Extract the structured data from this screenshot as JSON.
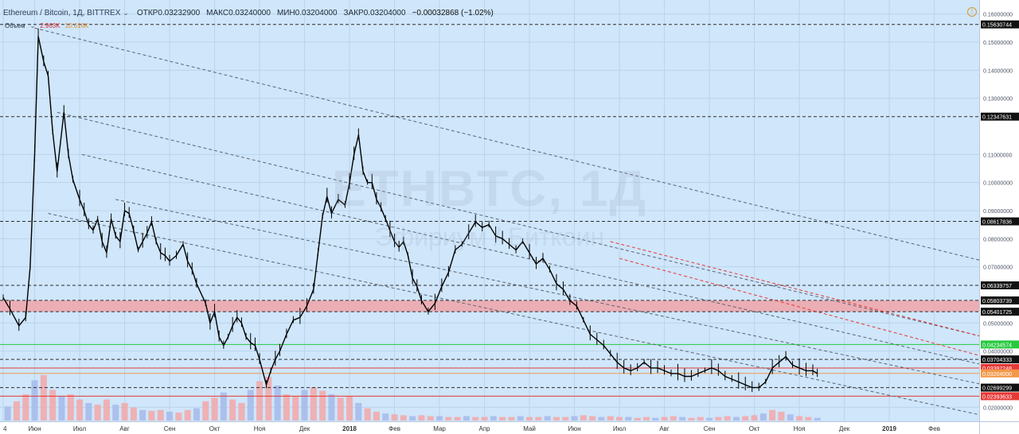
{
  "header": {
    "symbol": "Ethereum / Bitcoin, 1Д, BITTREX",
    "open": "ОТКР0.03232900",
    "high": "МАКС0.03240000",
    "low": "МИН0.03204000",
    "close": "ЗАКР0.03204000",
    "change": "−0.00032868 (−1.02%)"
  },
  "volume_legend": {
    "label": "Объем",
    "value1": "2.963K",
    "value2": "10.616K"
  },
  "watermark": {
    "title": "ETHBTC, 1Д",
    "subtitle": "Эфириум / Биткоин"
  },
  "colors": {
    "background": "#cfe6fb",
    "candle": "#000000",
    "volume_up": "#a6b8e9",
    "volume_down": "#f3a7a7",
    "zone_fill": "#f0a3a8",
    "red_line": "#e53935",
    "green_line": "#27c93f",
    "grey_dashed": "#5b6570"
  },
  "chart_data": {
    "type": "candlestick",
    "symbol": "ETHBTC",
    "exchange": "BITTREX",
    "timeframe": "1Д",
    "yaxis": {
      "tick_labels": [
        "0.16000000",
        "0.15000000",
        "0.14000000",
        "0.13000000",
        "0.11000000",
        "0.10000000",
        "0.09000000",
        "0.08000000",
        "0.07000000",
        "0.05000000",
        "0.04000000",
        "0.02000000"
      ],
      "ticks": [
        0.16,
        0.15,
        0.14,
        0.13,
        0.11,
        0.1,
        0.09,
        0.08,
        0.07,
        0.05,
        0.04,
        0.02
      ],
      "range": [
        0.015,
        0.165
      ]
    },
    "xaxis": {
      "tick_labels": [
        "4",
        "Июн",
        "Июл",
        "Авг",
        "Сен",
        "Окт",
        "Ноя",
        "Дек",
        "2018",
        "Фев",
        "Мар",
        "Апр",
        "Май",
        "Июн",
        "Июл",
        "Авг",
        "Сен",
        "Окт",
        "Ноя",
        "Дек",
        "2019",
        "Фев"
      ],
      "tick_positions": [
        0.0,
        0.7,
        1.7,
        2.7,
        3.7,
        4.7,
        5.7,
        6.7,
        7.7,
        8.7,
        9.7,
        10.7,
        11.7,
        12.7,
        13.7,
        14.7,
        15.7,
        16.7,
        17.7,
        18.7,
        19.7,
        20.7
      ]
    },
    "price_markers": [
      {
        "label": "0.15630744",
        "value": 0.15630744,
        "style": "black"
      },
      {
        "label": "0.12347631",
        "value": 0.12347631,
        "style": "black"
      },
      {
        "label": "0.08617836",
        "value": 0.08617836,
        "style": "black"
      },
      {
        "label": "0.06339757",
        "value": 0.06339757,
        "style": "black"
      },
      {
        "label": "0.05803739",
        "value": 0.05803739,
        "style": "black"
      },
      {
        "label": "0.05401725",
        "value": 0.05401725,
        "style": "black"
      },
      {
        "label": "0.04234574",
        "value": 0.04234574,
        "style": "green"
      },
      {
        "label": "0.03704333",
        "value": 0.03704333,
        "style": "black"
      },
      {
        "label": "0.03397248",
        "value": 0.03397248,
        "style": "red"
      },
      {
        "label": "0.03204000",
        "value": 0.03204,
        "style": "orange"
      },
      {
        "label": "0.02699299",
        "value": 0.02699299,
        "style": "black"
      },
      {
        "label": "0.02393633",
        "value": 0.02393633,
        "style": "red"
      }
    ],
    "resistance_zone": [
      0.05401725,
      0.05803739
    ],
    "price_path": [
      [
        0.0,
        0.059
      ],
      [
        0.15,
        0.055
      ],
      [
        0.35,
        0.049
      ],
      [
        0.5,
        0.052
      ],
      [
        0.6,
        0.07
      ],
      [
        0.7,
        0.11
      ],
      [
        0.78,
        0.152
      ],
      [
        0.9,
        0.143
      ],
      [
        1.0,
        0.138
      ],
      [
        1.1,
        0.118
      ],
      [
        1.2,
        0.104
      ],
      [
        1.35,
        0.125
      ],
      [
        1.45,
        0.11
      ],
      [
        1.55,
        0.101
      ],
      [
        1.7,
        0.094
      ],
      [
        1.8,
        0.09
      ],
      [
        1.9,
        0.085
      ],
      [
        2.0,
        0.083
      ],
      [
        2.1,
        0.087
      ],
      [
        2.2,
        0.079
      ],
      [
        2.3,
        0.075
      ],
      [
        2.4,
        0.087
      ],
      [
        2.5,
        0.081
      ],
      [
        2.6,
        0.079
      ],
      [
        2.7,
        0.09
      ],
      [
        2.8,
        0.089
      ],
      [
        2.9,
        0.083
      ],
      [
        3.0,
        0.076
      ],
      [
        3.1,
        0.079
      ],
      [
        3.2,
        0.082
      ],
      [
        3.3,
        0.086
      ],
      [
        3.4,
        0.079
      ],
      [
        3.5,
        0.075
      ],
      [
        3.6,
        0.074
      ],
      [
        3.7,
        0.072
      ],
      [
        3.85,
        0.074
      ],
      [
        4.0,
        0.078
      ],
      [
        4.1,
        0.072
      ],
      [
        4.2,
        0.069
      ],
      [
        4.3,
        0.064
      ],
      [
        4.5,
        0.057
      ],
      [
        4.6,
        0.05
      ],
      [
        4.7,
        0.054
      ],
      [
        4.8,
        0.045
      ],
      [
        4.9,
        0.042
      ],
      [
        5.0,
        0.045
      ],
      [
        5.1,
        0.049
      ],
      [
        5.2,
        0.052
      ],
      [
        5.3,
        0.05
      ],
      [
        5.4,
        0.045
      ],
      [
        5.5,
        0.043
      ],
      [
        5.6,
        0.042
      ],
      [
        5.7,
        0.037
      ],
      [
        5.85,
        0.028
      ],
      [
        5.95,
        0.033
      ],
      [
        6.05,
        0.037
      ],
      [
        6.15,
        0.04
      ],
      [
        6.3,
        0.046
      ],
      [
        6.45,
        0.051
      ],
      [
        6.6,
        0.052
      ],
      [
        6.75,
        0.056
      ],
      [
        6.9,
        0.062
      ],
      [
        7.0,
        0.075
      ],
      [
        7.1,
        0.088
      ],
      [
        7.2,
        0.095
      ],
      [
        7.3,
        0.089
      ],
      [
        7.45,
        0.094
      ],
      [
        7.6,
        0.092
      ],
      [
        7.7,
        0.1
      ],
      [
        7.8,
        0.11
      ],
      [
        7.9,
        0.117
      ],
      [
        8.0,
        0.104
      ],
      [
        8.1,
        0.1
      ],
      [
        8.2,
        0.1
      ],
      [
        8.3,
        0.094
      ],
      [
        8.4,
        0.091
      ],
      [
        8.5,
        0.087
      ],
      [
        8.6,
        0.083
      ],
      [
        8.7,
        0.079
      ],
      [
        8.8,
        0.077
      ],
      [
        8.9,
        0.079
      ],
      [
        9.0,
        0.074
      ],
      [
        9.1,
        0.066
      ],
      [
        9.2,
        0.063
      ],
      [
        9.3,
        0.058
      ],
      [
        9.45,
        0.054
      ],
      [
        9.6,
        0.057
      ],
      [
        9.75,
        0.063
      ],
      [
        9.9,
        0.068
      ],
      [
        10.05,
        0.076
      ],
      [
        10.2,
        0.078
      ],
      [
        10.35,
        0.082
      ],
      [
        10.5,
        0.086
      ],
      [
        10.65,
        0.084
      ],
      [
        10.8,
        0.085
      ],
      [
        10.95,
        0.081
      ],
      [
        11.1,
        0.08
      ],
      [
        11.25,
        0.078
      ],
      [
        11.4,
        0.076
      ],
      [
        11.55,
        0.079
      ],
      [
        11.7,
        0.075
      ],
      [
        11.85,
        0.071
      ],
      [
        12.0,
        0.073
      ],
      [
        12.15,
        0.069
      ],
      [
        12.3,
        0.064
      ],
      [
        12.45,
        0.062
      ],
      [
        12.6,
        0.058
      ],
      [
        12.75,
        0.056
      ],
      [
        12.9,
        0.051
      ],
      [
        13.05,
        0.046
      ],
      [
        13.2,
        0.044
      ],
      [
        13.35,
        0.042
      ],
      [
        13.5,
        0.039
      ],
      [
        13.65,
        0.036
      ],
      [
        13.8,
        0.034
      ],
      [
        13.95,
        0.033
      ],
      [
        14.1,
        0.034
      ],
      [
        14.25,
        0.036
      ],
      [
        14.4,
        0.034
      ],
      [
        14.55,
        0.034
      ],
      [
        14.7,
        0.033
      ],
      [
        14.85,
        0.032
      ],
      [
        15.0,
        0.032
      ],
      [
        15.15,
        0.031
      ],
      [
        15.3,
        0.031
      ],
      [
        15.45,
        0.032
      ],
      [
        15.6,
        0.033
      ],
      [
        15.75,
        0.034
      ],
      [
        15.9,
        0.033
      ],
      [
        16.05,
        0.031
      ],
      [
        16.2,
        0.03
      ],
      [
        16.35,
        0.029
      ],
      [
        16.5,
        0.028
      ],
      [
        16.65,
        0.027
      ],
      [
        16.8,
        0.027
      ],
      [
        16.95,
        0.029
      ],
      [
        17.1,
        0.034
      ],
      [
        17.25,
        0.036
      ],
      [
        17.4,
        0.038
      ],
      [
        17.55,
        0.035
      ],
      [
        17.7,
        0.034
      ],
      [
        17.85,
        0.033
      ],
      [
        18.0,
        0.033
      ],
      [
        18.1,
        0.032
      ]
    ],
    "volume": [
      [
        0.1,
        0.16
      ],
      [
        0.3,
        0.22
      ],
      [
        0.5,
        0.3
      ],
      [
        0.7,
        0.46
      ],
      [
        0.9,
        0.52
      ],
      [
        1.1,
        0.35
      ],
      [
        1.3,
        0.28
      ],
      [
        1.5,
        0.3
      ],
      [
        1.7,
        0.24
      ],
      [
        1.9,
        0.2
      ],
      [
        2.1,
        0.18
      ],
      [
        2.3,
        0.24
      ],
      [
        2.5,
        0.18
      ],
      [
        2.7,
        0.2
      ],
      [
        2.9,
        0.15
      ],
      [
        3.1,
        0.12
      ],
      [
        3.3,
        0.11
      ],
      [
        3.5,
        0.12
      ],
      [
        3.7,
        0.1
      ],
      [
        3.9,
        0.09
      ],
      [
        4.1,
        0.12
      ],
      [
        4.3,
        0.14
      ],
      [
        4.5,
        0.22
      ],
      [
        4.7,
        0.26
      ],
      [
        4.9,
        0.32
      ],
      [
        5.1,
        0.24
      ],
      [
        5.3,
        0.2
      ],
      [
        5.5,
        0.35
      ],
      [
        5.7,
        0.45
      ],
      [
        5.9,
        0.5
      ],
      [
        6.1,
        0.4
      ],
      [
        6.3,
        0.3
      ],
      [
        6.5,
        0.28
      ],
      [
        6.7,
        0.35
      ],
      [
        6.9,
        0.38
      ],
      [
        7.1,
        0.34
      ],
      [
        7.3,
        0.3
      ],
      [
        7.5,
        0.26
      ],
      [
        7.7,
        0.28
      ],
      [
        7.9,
        0.2
      ],
      [
        8.1,
        0.14
      ],
      [
        8.3,
        0.1
      ],
      [
        8.5,
        0.08
      ],
      [
        8.7,
        0.07
      ],
      [
        8.9,
        0.06
      ],
      [
        9.1,
        0.05
      ],
      [
        9.3,
        0.06
      ],
      [
        9.5,
        0.05
      ],
      [
        9.7,
        0.05
      ],
      [
        9.9,
        0.04
      ],
      [
        10.1,
        0.04
      ],
      [
        10.3,
        0.05
      ],
      [
        10.5,
        0.04
      ],
      [
        10.7,
        0.04
      ],
      [
        10.9,
        0.05
      ],
      [
        11.1,
        0.04
      ],
      [
        11.3,
        0.04
      ],
      [
        11.5,
        0.05
      ],
      [
        11.7,
        0.04
      ],
      [
        11.9,
        0.04
      ],
      [
        12.1,
        0.05
      ],
      [
        12.3,
        0.04
      ],
      [
        12.5,
        0.04
      ],
      [
        12.7,
        0.05
      ],
      [
        12.9,
        0.06
      ],
      [
        13.1,
        0.05
      ],
      [
        13.3,
        0.04
      ],
      [
        13.5,
        0.05
      ],
      [
        13.7,
        0.04
      ],
      [
        13.9,
        0.04
      ],
      [
        14.1,
        0.03
      ],
      [
        14.3,
        0.04
      ],
      [
        14.5,
        0.03
      ],
      [
        14.7,
        0.04
      ],
      [
        14.9,
        0.05
      ],
      [
        15.1,
        0.04
      ],
      [
        15.3,
        0.03
      ],
      [
        15.5,
        0.04
      ],
      [
        15.7,
        0.03
      ],
      [
        15.9,
        0.04
      ],
      [
        16.1,
        0.05
      ],
      [
        16.3,
        0.04
      ],
      [
        16.5,
        0.05
      ],
      [
        16.7,
        0.06
      ],
      [
        16.9,
        0.08
      ],
      [
        17.1,
        0.12
      ],
      [
        17.3,
        0.1
      ],
      [
        17.5,
        0.07
      ],
      [
        17.7,
        0.05
      ],
      [
        17.9,
        0.04
      ],
      [
        18.1,
        0.03
      ]
    ],
    "trendlines": [
      {
        "style": "black-dashed",
        "from": [
          0.7,
          0.155
        ],
        "to": [
          21.8,
          0.072
        ]
      },
      {
        "style": "black-dashed",
        "from": [
          1.2,
          0.125
        ],
        "to": [
          21.8,
          0.045
        ]
      },
      {
        "style": "black-dashed",
        "from": [
          1.75,
          0.11
        ],
        "to": [
          21.8,
          0.035
        ]
      },
      {
        "style": "black-dashed",
        "from": [
          2.5,
          0.094
        ],
        "to": [
          21.8,
          0.028
        ]
      },
      {
        "style": "black-dashed",
        "from": [
          1.0,
          0.089
        ],
        "to": [
          21.8,
          0.017
        ]
      },
      {
        "style": "red-dashed",
        "from": [
          13.5,
          0.079
        ],
        "to": [
          21.8,
          0.045
        ]
      },
      {
        "style": "red-dashed",
        "from": [
          13.7,
          0.073
        ],
        "to": [
          21.8,
          0.038
        ]
      }
    ]
  }
}
